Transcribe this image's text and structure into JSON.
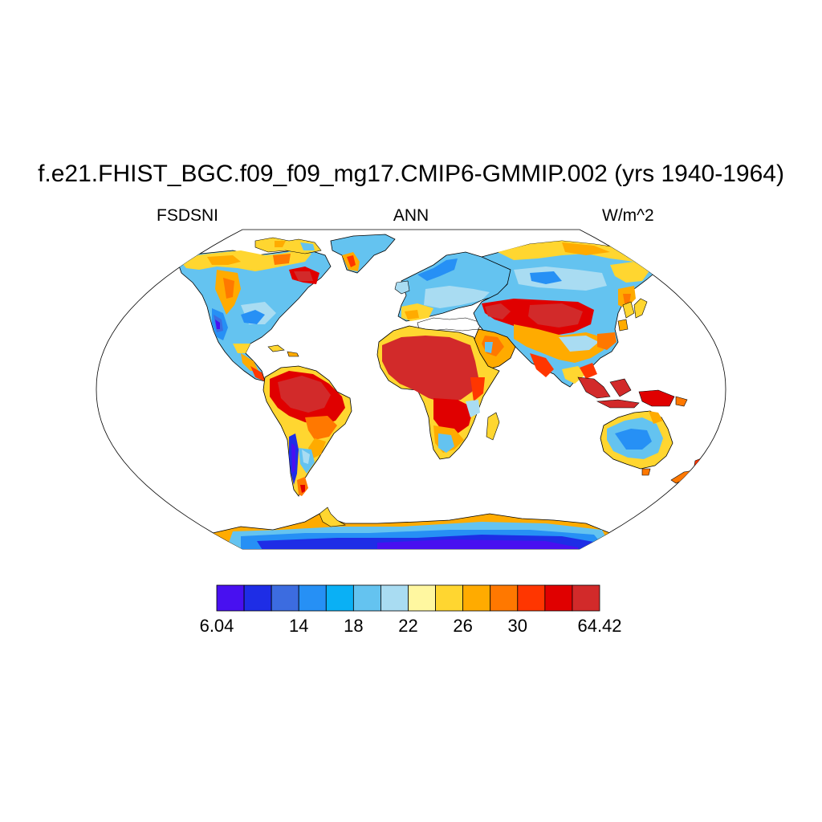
{
  "title": "f.e21.FHIST_BGC.f09_f09_mg17.CMIP6-GMMIP.002 (yrs 1940-1964)",
  "left_label": "FSDSNI",
  "center_label": "ANN",
  "right_label": "W/m^2",
  "map": {
    "projection": "Robinson",
    "ocean_color": "#ffffff",
    "coastline_color": "#000000",
    "variable": "FSDSNI"
  },
  "colorbar": {
    "colors": [
      "#4810f0",
      "#1e2de6",
      "#3c6ce0",
      "#2690f5",
      "#0ab0f5",
      "#64c3f0",
      "#a9dcf2",
      "#fff7a0",
      "#ffd630",
      "#ffab00",
      "#ff7800",
      "#ff3600",
      "#e00000",
      "#d22a2a"
    ],
    "labels": [
      {
        "text": "6.04",
        "boundary": 0
      },
      {
        "text": "14",
        "boundary": 3
      },
      {
        "text": "18",
        "boundary": 5
      },
      {
        "text": "22",
        "boundary": 7
      },
      {
        "text": "26",
        "boundary": 9
      },
      {
        "text": "30",
        "boundary": 11
      },
      {
        "text": "64.42",
        "boundary": 14
      }
    ]
  }
}
